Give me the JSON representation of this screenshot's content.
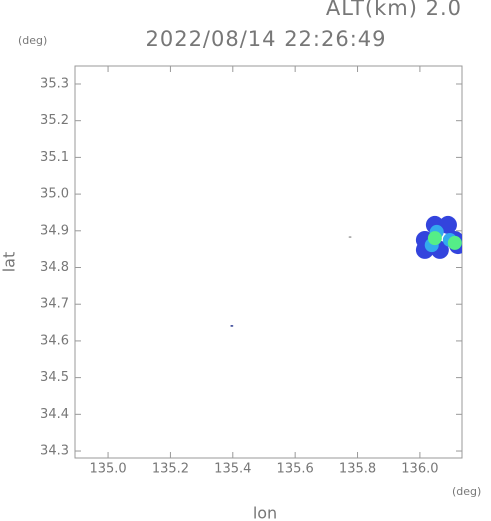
{
  "chart_data": {
    "type": "scatter",
    "title": "2022/08/14 22:26:49",
    "subtitle": "ALT(km) 2.0",
    "y_unit": "(deg)",
    "x_unit": "(deg)",
    "x_label": "lon",
    "y_label": "lat",
    "xlim": [
      134.894,
      136.135
    ],
    "ylim": [
      34.281,
      35.349
    ],
    "xticks": [
      {
        "value": 135,
        "label": "135.0"
      },
      135.2,
      135.4,
      135.6,
      135.8,
      {
        "value": 136,
        "label": "136.0"
      }
    ],
    "yticks": [
      34.3,
      34.4,
      34.5,
      34.6,
      34.7,
      34.8,
      34.9,
      {
        "value": 35,
        "label": "35.0"
      },
      35.1,
      35.2,
      35.3
    ],
    "x": [
      136.016,
      136.048,
      136.09,
      136.112,
      136.064,
      136.016,
      136.122,
      136.054,
      136.096,
      136.038,
      136.048,
      136.112,
      135.397,
      135.776
    ],
    "values": [
      34.875,
      34.916,
      34.916,
      34.875,
      34.848,
      34.848,
      34.861,
      34.897,
      34.875,
      34.861,
      34.88,
      34.867,
      34.641,
      34.883
    ],
    "colors": [
      "#3344dd",
      "#3344dd",
      "#3344dd",
      "#3344dd",
      "#3344dd",
      "#3344dd",
      "#3344dd",
      "#33aaee",
      "#33aaee",
      "#33aaee",
      "#55ee88",
      "#55ee88",
      "#1a2a88",
      "#999999"
    ]
  }
}
